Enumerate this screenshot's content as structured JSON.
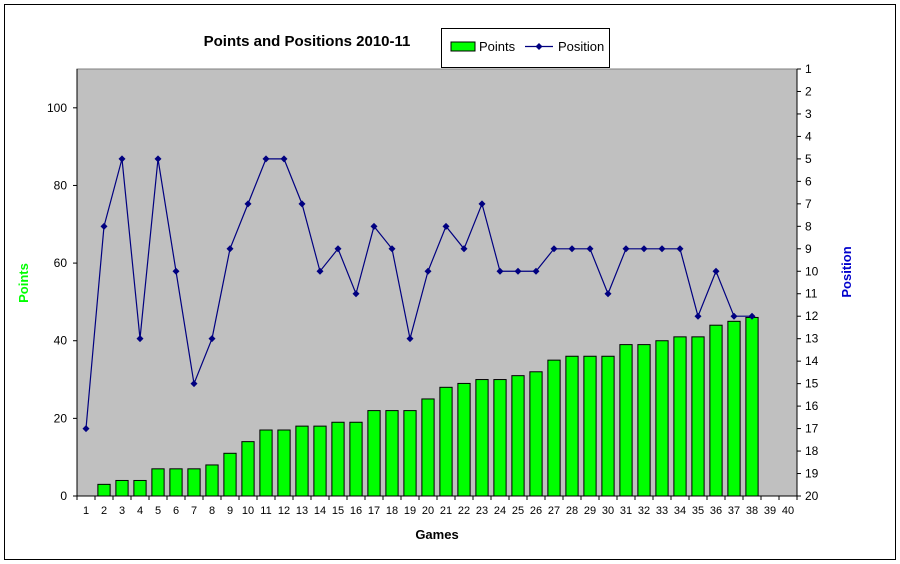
{
  "chart_data": {
    "type": "bar",
    "title": "Points and Positions 2010-11",
    "xlabel": "Games",
    "ylabel": "Points",
    "y2label": "Position",
    "ylim": [
      0,
      110
    ],
    "yticks": [
      0,
      20,
      40,
      60,
      80,
      100
    ],
    "y2lim": [
      1,
      20
    ],
    "y2ticks": [
      1,
      2,
      3,
      4,
      5,
      6,
      7,
      8,
      9,
      10,
      11,
      12,
      13,
      14,
      15,
      16,
      17,
      18,
      19,
      20
    ],
    "y2_inverted": true,
    "grid": false,
    "legend_position": "top",
    "colors": {
      "points": "#00ff00",
      "position": "#000080",
      "plot_bg": "#c0c0c0",
      "points_label": "#00ff00",
      "position_label": "#0000cc"
    },
    "categories": [
      1,
      2,
      3,
      4,
      5,
      6,
      7,
      8,
      9,
      10,
      11,
      12,
      13,
      14,
      15,
      16,
      17,
      18,
      19,
      20,
      21,
      22,
      23,
      24,
      25,
      26,
      27,
      28,
      29,
      30,
      31,
      32,
      33,
      34,
      35,
      36,
      37,
      38,
      39,
      40
    ],
    "series": [
      {
        "name": "Points",
        "type": "bar",
        "axis": "left",
        "values": [
          0,
          3,
          4,
          4,
          7,
          7,
          7,
          8,
          11,
          14,
          17,
          17,
          18,
          18,
          19,
          19,
          22,
          22,
          22,
          25,
          28,
          29,
          30,
          30,
          31,
          32,
          35,
          36,
          36,
          36,
          39,
          39,
          40,
          41,
          41,
          44,
          45,
          46,
          null,
          null
        ]
      },
      {
        "name": "Position",
        "type": "line",
        "axis": "right",
        "values": [
          17,
          8,
          5,
          13,
          5,
          10,
          15,
          13,
          9,
          7,
          5,
          5,
          7,
          10,
          9,
          11,
          8,
          9,
          13,
          10,
          8,
          9,
          7,
          10,
          10,
          10,
          9,
          9,
          9,
          11,
          9,
          9,
          9,
          9,
          12,
          10,
          12,
          12,
          null,
          null
        ]
      }
    ]
  }
}
